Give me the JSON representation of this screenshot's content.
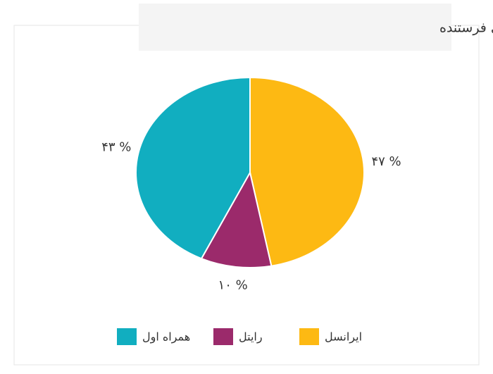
{
  "chart_data": {
    "type": "pie",
    "title": "میزان ترابرد برحسب اپراتورهای فرستنده",
    "categories": [
      "ایرانسل",
      "رایتل",
      "همراه اول"
    ],
    "values": [
      47,
      10,
      43
    ],
    "value_labels": [
      "۴۷ %",
      "۱۰ %",
      "۴۳ %"
    ],
    "colors": [
      "#fdb913",
      "#9b2a6b",
      "#11aec0"
    ],
    "legend": "bottom"
  }
}
